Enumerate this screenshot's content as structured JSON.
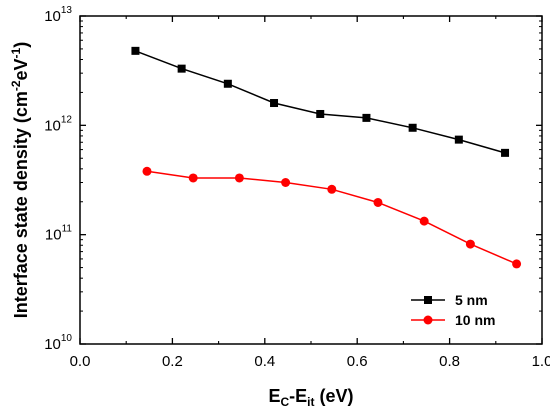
{
  "chart_data": {
    "type": "line",
    "title": "",
    "x_axis": {
      "label_main": "E",
      "label_sub1": "C",
      "label_mid": "-E",
      "label_sub2": "it",
      "label_tail": " (eV)",
      "range": [
        0.0,
        1.0
      ],
      "ticks": [
        0.0,
        0.2,
        0.4,
        0.6,
        0.8,
        1.0
      ],
      "tick_labels": [
        "0.0",
        "0.2",
        "0.4",
        "0.6",
        "0.8",
        "1.0"
      ]
    },
    "y_axis": {
      "scale": "log",
      "label_main": "Interface state density (cm",
      "label_sup1": "-2",
      "label_mid": "eV",
      "label_sup2": "-1",
      "label_tail": ")",
      "range": [
        10000000000.0,
        10000000000000.0
      ],
      "ticks": [
        10000000000.0,
        100000000000.0,
        1000000000000.0,
        10000000000000.0
      ],
      "tick_labels": [
        {
          "base": "10",
          "exp": "10"
        },
        {
          "base": "10",
          "exp": "11"
        },
        {
          "base": "10",
          "exp": "12"
        },
        {
          "base": "10",
          "exp": "13"
        }
      ]
    },
    "grid": false,
    "legend_position": "bottom-right",
    "series": [
      {
        "name": "5 nm",
        "color": "#000000",
        "marker": "square",
        "x": [
          0.12,
          0.22,
          0.32,
          0.42,
          0.52,
          0.62,
          0.72,
          0.82,
          0.92
        ],
        "y": [
          4800000000000.0,
          3300000000000.0,
          2400000000000.0,
          1600000000000.0,
          1270000000000.0,
          1170000000000.0,
          950000000000.0,
          740000000000.0,
          560000000000.0
        ]
      },
      {
        "name": "10 nm",
        "color": "#ff0000",
        "marker": "circle",
        "x": [
          0.145,
          0.245,
          0.345,
          0.445,
          0.545,
          0.645,
          0.745,
          0.845,
          0.945
        ],
        "y": [
          380000000000.0,
          330000000000.0,
          330000000000.0,
          300000000000.0,
          260000000000.0,
          197000000000.0,
          133000000000.0,
          82000000000.0,
          54000000000.0
        ]
      }
    ]
  }
}
